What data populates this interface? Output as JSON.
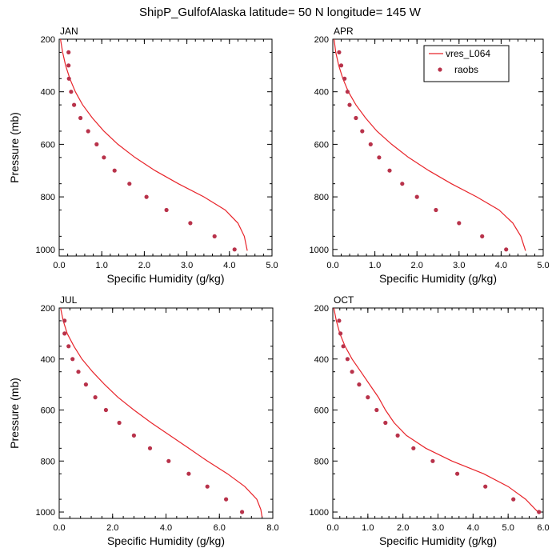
{
  "title": "ShipP_GulfofAlaska  latitude= 50 N longitude= 145 W",
  "colors": {
    "model": "#e8242a",
    "obs": "#b8324a"
  },
  "legend": {
    "model_label": "vres_L064",
    "obs_label": "raobs",
    "placement": "top-right of APR panel"
  },
  "chart_data": [
    {
      "type": "line",
      "panel_label": "JAN",
      "xlabel": "Specific Humidity (g/kg)",
      "ylabel": "Pressure (mb)",
      "xlim": [
        0,
        5
      ],
      "ylim": [
        200,
        1025
      ],
      "y_inverted": true,
      "xticks": [
        "0.0",
        "1.0",
        "2.0",
        "3.0",
        "4.0",
        "5.0"
      ],
      "yticks": [
        "200",
        "400",
        "600",
        "800",
        "1000"
      ],
      "series": [
        {
          "name": "vres_L064",
          "style": "line",
          "x": [
            0.03,
            0.08,
            0.15,
            0.25,
            0.38,
            0.55,
            0.78,
            1.05,
            1.38,
            1.78,
            2.25,
            2.8,
            3.4,
            3.9,
            4.2,
            4.35,
            4.42
          ],
          "y": [
            200,
            250,
            300,
            350,
            400,
            450,
            500,
            550,
            600,
            650,
            700,
            750,
            800,
            850,
            900,
            950,
            1005
          ]
        },
        {
          "name": "raobs",
          "style": "markers",
          "x": [
            0.22,
            0.22,
            0.23,
            0.28,
            0.35,
            0.5,
            0.68,
            0.88,
            1.05,
            1.3,
            1.65,
            2.05,
            2.52,
            3.08,
            3.65,
            4.12
          ],
          "y": [
            250,
            300,
            350,
            400,
            450,
            500,
            550,
            600,
            650,
            700,
            750,
            800,
            850,
            900,
            950,
            1000
          ]
        }
      ]
    },
    {
      "type": "line",
      "panel_label": "APR",
      "xlabel": "Specific Humidity (g/kg)",
      "ylabel": "",
      "xlim": [
        0,
        5
      ],
      "ylim": [
        200,
        1025
      ],
      "y_inverted": true,
      "xticks": [
        "0.0",
        "1.0",
        "2.0",
        "3.0",
        "4.0",
        "5.0"
      ],
      "yticks": [
        "200",
        "400",
        "600",
        "800",
        "1000"
      ],
      "series": [
        {
          "name": "vres_L064",
          "style": "line",
          "x": [
            0.03,
            0.07,
            0.14,
            0.24,
            0.37,
            0.55,
            0.78,
            1.05,
            1.4,
            1.8,
            2.28,
            2.82,
            3.42,
            3.95,
            4.28,
            4.47,
            4.58
          ],
          "y": [
            200,
            250,
            300,
            350,
            400,
            450,
            500,
            550,
            600,
            650,
            700,
            750,
            800,
            850,
            900,
            950,
            1005
          ]
        },
        {
          "name": "raobs",
          "style": "markers",
          "x": [
            0.15,
            0.2,
            0.28,
            0.35,
            0.4,
            0.55,
            0.7,
            0.9,
            1.1,
            1.35,
            1.65,
            2.0,
            2.45,
            3.0,
            3.55,
            4.12
          ],
          "y": [
            250,
            300,
            350,
            400,
            450,
            500,
            550,
            600,
            650,
            700,
            750,
            800,
            850,
            900,
            950,
            1000
          ]
        }
      ]
    },
    {
      "type": "line",
      "panel_label": "JUL",
      "xlabel": "Specific Humidity (g/kg)",
      "ylabel": "Pressure (mb)",
      "xlim": [
        0,
        8
      ],
      "ylim": [
        200,
        1025
      ],
      "y_inverted": true,
      "xticks": [
        "0.0",
        "2.0",
        "4.0",
        "6.0",
        "8.0"
      ],
      "yticks": [
        "200",
        "400",
        "600",
        "800",
        "1000"
      ],
      "series": [
        {
          "name": "vres_L064",
          "style": "line",
          "x": [
            0.05,
            0.15,
            0.3,
            0.55,
            0.85,
            1.25,
            1.7,
            2.2,
            2.8,
            3.45,
            4.15,
            4.85,
            5.55,
            6.3,
            6.95,
            7.4,
            7.55,
            7.6
          ],
          "y": [
            200,
            250,
            300,
            350,
            400,
            450,
            500,
            550,
            600,
            650,
            700,
            750,
            800,
            850,
            900,
            950,
            990,
            1020
          ]
        },
        {
          "name": "raobs",
          "style": "markers",
          "x": [
            0.2,
            0.2,
            0.35,
            0.5,
            0.72,
            1.0,
            1.35,
            1.75,
            2.25,
            2.8,
            3.4,
            4.1,
            4.85,
            5.55,
            6.25,
            6.85
          ],
          "y": [
            250,
            300,
            350,
            400,
            450,
            500,
            550,
            600,
            650,
            700,
            750,
            800,
            850,
            900,
            950,
            1000
          ]
        }
      ]
    },
    {
      "type": "line",
      "panel_label": "OCT",
      "xlabel": "Specific Humidity (g/kg)",
      "ylabel": "",
      "xlim": [
        0,
        6
      ],
      "ylim": [
        200,
        1025
      ],
      "y_inverted": true,
      "xticks": [
        "0.0",
        "1.0",
        "2.0",
        "3.0",
        "4.0",
        "5.0",
        "6.0"
      ],
      "yticks": [
        "200",
        "400",
        "600",
        "800",
        "1000"
      ],
      "series": [
        {
          "name": "vres_L064",
          "style": "line",
          "x": [
            0.03,
            0.1,
            0.2,
            0.35,
            0.55,
            0.8,
            1.05,
            1.3,
            1.5,
            1.75,
            2.1,
            2.65,
            3.4,
            4.3,
            5.0,
            5.5,
            5.85
          ],
          "y": [
            200,
            250,
            300,
            350,
            400,
            450,
            500,
            550,
            600,
            650,
            700,
            750,
            800,
            850,
            900,
            950,
            1000
          ]
        },
        {
          "name": "raobs",
          "style": "markers",
          "x": [
            0.18,
            0.22,
            0.3,
            0.42,
            0.55,
            0.75,
            1.0,
            1.25,
            1.5,
            1.85,
            2.3,
            2.85,
            3.55,
            4.35,
            5.15,
            5.88
          ],
          "y": [
            250,
            300,
            350,
            400,
            450,
            500,
            550,
            600,
            650,
            700,
            750,
            800,
            850,
            900,
            950,
            1000
          ]
        }
      ]
    }
  ]
}
